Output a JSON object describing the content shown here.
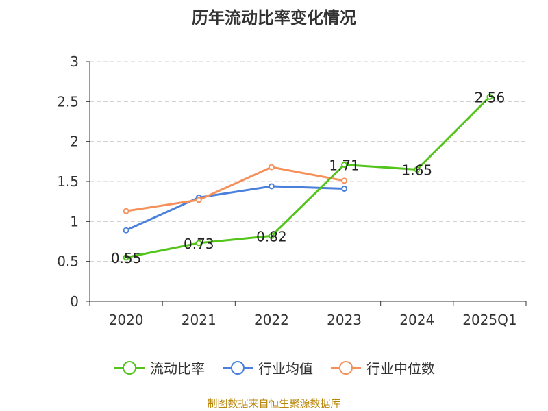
{
  "title": "历年流动比率变化情况",
  "source": "制图数据来自恒生聚源数据库",
  "chart_data": {
    "type": "line",
    "title": "历年流动比率变化情况",
    "categories": [
      "2020",
      "2021",
      "2022",
      "2023",
      "2024",
      "2025Q1"
    ],
    "ylim": [
      0,
      3
    ],
    "yticks": [
      "0",
      "0.5",
      "1",
      "1.5",
      "2",
      "2.5",
      "3"
    ],
    "grid": true,
    "legend_position": "bottom",
    "series": [
      {
        "name": "流动比率",
        "color": "#52c41a",
        "values": [
          0.55,
          0.73,
          0.82,
          1.71,
          1.65,
          2.56
        ],
        "labels": [
          "0.55",
          "0.73",
          "0.82",
          "1.71",
          "1.65",
          "2.56"
        ]
      },
      {
        "name": "行业均值",
        "color": "#4a7fdb",
        "values": [
          0.89,
          1.3,
          1.44,
          1.41,
          null,
          null
        ]
      },
      {
        "name": "行业中位数",
        "color": "#f5905a",
        "values": [
          1.13,
          1.27,
          1.68,
          1.51,
          null,
          null
        ]
      }
    ]
  }
}
